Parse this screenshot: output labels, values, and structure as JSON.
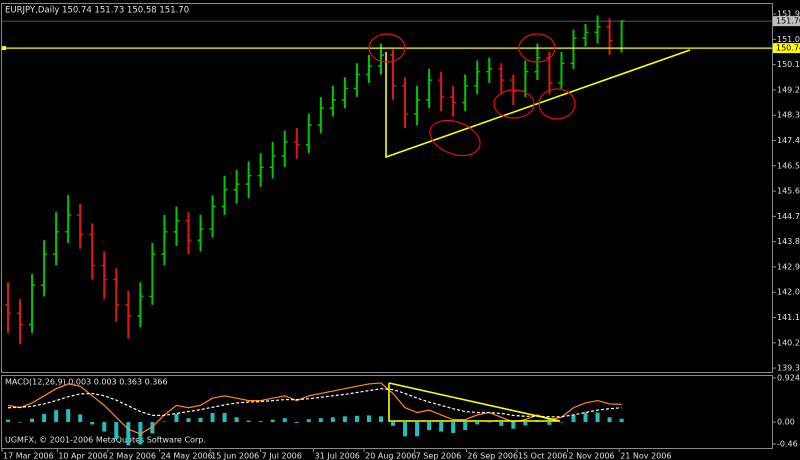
{
  "chart_data": [
    {
      "type": "ohlc",
      "header": "EURJPY,Daily  150.74 151.73 150.58 151.70",
      "xlim": [
        0,
        64
      ],
      "x": [
        0.5,
        1.5,
        2.5,
        3.5,
        4.5,
        5.5,
        6.5,
        7.5,
        8.5,
        9.5,
        10.5,
        11.5,
        12.5,
        13.5,
        14.5,
        15.5,
        16.5,
        17.5,
        18.5,
        19.5,
        20.5,
        21.5,
        22.5,
        23.5,
        24.5,
        25.5,
        26.5,
        27.5,
        28.5,
        29.5,
        30.5,
        31.5,
        32.5,
        33.5,
        34.5,
        35.5,
        36.5,
        37.5,
        38.5,
        39.5,
        40.5,
        41.5,
        42.5,
        43.5,
        44.5,
        45.5,
        46.5,
        47.5,
        48.5,
        49.5,
        50.5,
        51.5
      ],
      "open": [
        141.6,
        141.3,
        140.9,
        142.3,
        143.4,
        144.2,
        144.8,
        144.1,
        143.0,
        142.5,
        141.6,
        141.2,
        141.9,
        143.4,
        144.2,
        144.6,
        143.9,
        144.3,
        145.1,
        145.7,
        145.9,
        146.2,
        146.5,
        146.9,
        147.4,
        147.3,
        148.0,
        148.6,
        148.9,
        149.3,
        149.8,
        150.1,
        150.5,
        149.4,
        148.4,
        148.9,
        149.6,
        149.0,
        148.8,
        149.4,
        149.9,
        150.0,
        149.6,
        149.2,
        149.9,
        150.4,
        149.5,
        150.2,
        151.1,
        151.3,
        151.5,
        150.74
      ],
      "high": [
        142.4,
        141.8,
        142.7,
        143.9,
        144.9,
        145.5,
        145.2,
        144.5,
        143.5,
        142.9,
        142.1,
        142.4,
        143.8,
        144.8,
        145.1,
        144.9,
        144.8,
        145.5,
        146.2,
        146.4,
        146.7,
        147.0,
        147.4,
        147.8,
        147.9,
        148.4,
        149.0,
        149.4,
        149.7,
        150.2,
        150.5,
        150.9,
        150.7,
        149.7,
        149.4,
        150.0,
        149.9,
        149.4,
        149.8,
        150.3,
        150.4,
        150.2,
        149.8,
        150.3,
        150.9,
        150.6,
        150.6,
        151.4,
        151.6,
        151.9,
        151.8,
        151.73
      ],
      "low": [
        140.6,
        140.2,
        140.6,
        141.9,
        143.0,
        143.8,
        143.6,
        142.5,
        141.8,
        141.0,
        140.4,
        140.8,
        141.6,
        143.0,
        143.7,
        143.4,
        143.5,
        144.0,
        144.8,
        145.2,
        145.4,
        145.8,
        146.1,
        146.5,
        146.8,
        147.0,
        147.7,
        148.3,
        148.6,
        149.0,
        149.5,
        149.8,
        148.9,
        147.9,
        148.0,
        148.6,
        148.5,
        148.3,
        148.5,
        149.1,
        149.5,
        149.1,
        148.7,
        149.0,
        149.6,
        149.1,
        149.3,
        150.0,
        150.8,
        150.9,
        150.5,
        150.58
      ],
      "close": [
        141.3,
        140.9,
        142.3,
        143.4,
        144.2,
        144.8,
        144.1,
        143.0,
        142.5,
        141.6,
        141.2,
        141.9,
        143.4,
        144.2,
        144.6,
        143.9,
        144.3,
        145.1,
        145.7,
        145.9,
        146.2,
        146.5,
        146.9,
        147.4,
        147.3,
        148.0,
        148.6,
        148.9,
        149.3,
        149.8,
        150.1,
        150.5,
        149.4,
        148.4,
        148.9,
        149.6,
        149.0,
        148.8,
        149.4,
        149.9,
        150.0,
        149.6,
        149.2,
        149.9,
        150.4,
        149.5,
        150.2,
        151.1,
        151.3,
        151.5,
        151.0,
        151.7
      ],
      "up_color": "#00c800",
      "down_color": "#e01818",
      "ylim": [
        139.21,
        152.31
      ],
      "yticks": [
        151.95,
        151.05,
        150.15,
        149.25,
        148.35,
        147.45,
        146.55,
        145.65,
        144.75,
        143.85,
        142.95,
        142.05,
        141.15,
        140.25,
        139.35
      ],
      "level": {
        "value": 150.74,
        "label": "150.74",
        "color": "#ffff00"
      },
      "last_price": {
        "value": 151.7,
        "label": "151.70",
        "color": "#c0c0c0"
      }
    },
    {
      "type": "macd",
      "label": "MACD(12,26,9) 0.003 0.003 0.363 0.366",
      "xlim": [
        0,
        64
      ],
      "x": [
        0.5,
        1.5,
        2.5,
        3.5,
        4.5,
        5.5,
        6.5,
        7.5,
        8.5,
        9.5,
        10.5,
        11.5,
        12.5,
        13.5,
        14.5,
        15.5,
        16.5,
        17.5,
        18.5,
        19.5,
        20.5,
        21.5,
        22.5,
        23.5,
        24.5,
        25.5,
        26.5,
        27.5,
        28.5,
        29.5,
        30.5,
        31.5,
        32.5,
        33.5,
        34.5,
        35.5,
        36.5,
        37.5,
        38.5,
        39.5,
        40.5,
        41.5,
        42.5,
        43.5,
        44.5,
        45.5,
        46.5,
        47.5,
        48.5,
        49.5,
        50.5,
        51.5
      ],
      "histogram": [
        0.05,
        -0.01,
        0.07,
        0.17,
        0.25,
        0.27,
        0.16,
        -0.05,
        -0.2,
        -0.36,
        -0.49,
        -0.47,
        -0.24,
        0.01,
        0.17,
        0.08,
        0.09,
        0.19,
        0.19,
        0.1,
        0.03,
        0.02,
        0.05,
        0.08,
        -0.02,
        0.06,
        0.08,
        0.1,
        0.12,
        0.13,
        0.14,
        0.12,
        -0.08,
        -0.3,
        -0.3,
        -0.17,
        -0.2,
        -0.23,
        -0.17,
        -0.05,
        0,
        -0.08,
        -0.14,
        -0.07,
        0.03,
        -0.06,
        -0.01,
        0.15,
        0.2,
        0.2,
        0.1,
        0.07
      ],
      "histogram_color": "#20c0c0",
      "macd": [
        0.35,
        0.3,
        0.4,
        0.55,
        0.7,
        0.8,
        0.75,
        0.55,
        0.35,
        0.1,
        -0.15,
        -0.25,
        -0.1,
        0.15,
        0.35,
        0.3,
        0.35,
        0.5,
        0.55,
        0.5,
        0.45,
        0.45,
        0.5,
        0.55,
        0.45,
        0.55,
        0.6,
        0.65,
        0.7,
        0.75,
        0.8,
        0.82,
        0.6,
        0.3,
        0.2,
        0.25,
        0.15,
        0.05,
        0.05,
        0.15,
        0.2,
        0.1,
        0,
        0.05,
        0.15,
        0.05,
        0.1,
        0.3,
        0.4,
        0.45,
        0.38,
        0.37
      ],
      "macd_color": "#ff8c1a",
      "signal": [
        0.3,
        0.31,
        0.33,
        0.38,
        0.45,
        0.53,
        0.59,
        0.6,
        0.55,
        0.46,
        0.34,
        0.22,
        0.14,
        0.14,
        0.18,
        0.22,
        0.26,
        0.31,
        0.36,
        0.4,
        0.42,
        0.43,
        0.45,
        0.47,
        0.47,
        0.49,
        0.52,
        0.55,
        0.58,
        0.62,
        0.66,
        0.7,
        0.68,
        0.6,
        0.5,
        0.42,
        0.35,
        0.28,
        0.22,
        0.2,
        0.2,
        0.18,
        0.14,
        0.12,
        0.12,
        0.11,
        0.11,
        0.15,
        0.2,
        0.25,
        0.28,
        0.3
      ],
      "signal_color": "#ffffff",
      "ylim": [
        -0.545,
        0.966
      ],
      "yticks": [
        0.924,
        {
          "value": 0,
          "label": "0.00"
        },
        -0.46
      ],
      "xticks": [
        {
          "value": 0,
          "label": "17 Mar 2006"
        },
        {
          "value": 4.6,
          "label": "10 Apr 2006"
        },
        {
          "value": 8.8,
          "label": "2 May 2006"
        },
        {
          "value": 13.1,
          "label": "24 May 2006"
        },
        {
          "value": 17.3,
          "label": "15 Jun 2006"
        },
        {
          "value": 21.5,
          "label": "7 Jul 2006"
        },
        {
          "value": 25.9,
          "label": "31 Jul 2006"
        },
        {
          "value": 30.1,
          "label": "20 Aug 2006"
        },
        {
          "value": 34.3,
          "label": "7 Sep 2006"
        },
        {
          "value": 38.6,
          "label": "26 Sep 2006"
        },
        {
          "value": 42.8,
          "label": "15 Oct 2006"
        },
        {
          "value": 47,
          "label": "2 Nov 2006"
        },
        {
          "value": 51.3,
          "label": "21 Nov 2006"
        }
      ],
      "footer": "UGMFX, © 2001-2006 MetaQuotes Software Corp."
    }
  ]
}
